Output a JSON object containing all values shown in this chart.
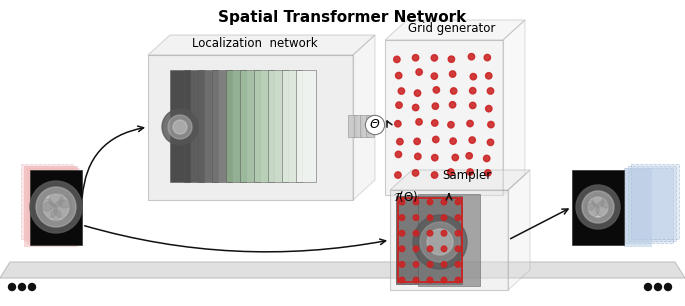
{
  "title": "Spatial Transformer Network",
  "title_fontsize": 11,
  "title_fontweight": "bold",
  "label_locnet": "Localization  network",
  "label_gridgen": "Grid generator",
  "label_sampler": "Sampler",
  "label_theta": "Θ",
  "bg_color": "#ffffff",
  "dot_color": "#cc2222",
  "input_pink": "#f2b8b8",
  "output_blue": "#b8cce4",
  "floor_light": "#e8e8e8",
  "floor_edge": "#bbbbbb",
  "box_face": "#e4e4e4",
  "box_edge": "#999999"
}
